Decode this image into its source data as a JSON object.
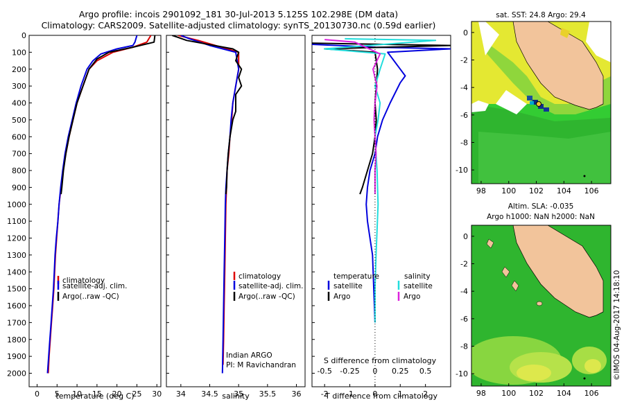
{
  "header": {
    "line1": "Argo profile: incois 2901092_181 30-Jul-2013 5.125S 102.298E (DM data)",
    "line2": "Climatology: CARS2009. Satellite-adjusted climatology: synTS_20130730.nc (0.59d earlier)"
  },
  "colors": {
    "climatology": "#dd0000",
    "satellite": "#0000dd",
    "argo": "#000000",
    "cyan": "#22dddd",
    "magenta": "#dd22dd",
    "land": "#f2c49b",
    "ocean": "#2fb52f"
  },
  "chart_data": [
    {
      "type": "line",
      "name": "temperature",
      "xlabel": "temperature (deg C)",
      "xlim": [
        -2,
        31
      ],
      "xticks": [
        "0",
        "5",
        "10",
        "15",
        "20",
        "25",
        "30"
      ],
      "ylim": [
        0,
        2080
      ],
      "yticks": [
        "0",
        "100",
        "200",
        "300",
        "400",
        "500",
        "600",
        "700",
        "800",
        "900",
        "1000",
        "1100",
        "1200",
        "1300",
        "1400",
        "1500",
        "1600",
        "1700",
        "1800",
        "1900",
        "2000"
      ],
      "legend": [
        "climatology",
        "satellite-adj. clim.",
        "Argo(..raw -QC)"
      ],
      "series": [
        {
          "name": "climatology",
          "color": "#dd0000",
          "points": [
            [
              28.5,
              0
            ],
            [
              27.5,
              40
            ],
            [
              24,
              70
            ],
            [
              19,
              100
            ],
            [
              15,
              150
            ],
            [
              13,
              200
            ],
            [
              11.5,
              300
            ],
            [
              10,
              400
            ],
            [
              9,
              500
            ],
            [
              8,
              600
            ],
            [
              7.2,
              700
            ],
            [
              6.5,
              800
            ],
            [
              6,
              900
            ],
            [
              5.5,
              1000
            ],
            [
              5.2,
              1100
            ],
            [
              4.9,
              1200
            ],
            [
              4.6,
              1300
            ],
            [
              4.4,
              1400
            ],
            [
              4.2,
              1500
            ],
            [
              3.9,
              1600
            ],
            [
              3.6,
              1700
            ],
            [
              3.3,
              1800
            ],
            [
              3,
              1900
            ],
            [
              2.8,
              2000
            ]
          ]
        },
        {
          "name": "satellite-adj. clim.",
          "color": "#0000dd",
          "points": [
            [
              25,
              0
            ],
            [
              24.5,
              40
            ],
            [
              24,
              60
            ],
            [
              20,
              80
            ],
            [
              16,
              110
            ],
            [
              14,
              150
            ],
            [
              12.5,
              200
            ],
            [
              11,
              300
            ],
            [
              9.8,
              400
            ],
            [
              8.8,
              500
            ],
            [
              7.8,
              600
            ],
            [
              7,
              700
            ],
            [
              6.4,
              800
            ],
            [
              5.9,
              900
            ],
            [
              5.5,
              1000
            ],
            [
              5.2,
              1100
            ],
            [
              4.8,
              1200
            ],
            [
              4.5,
              1300
            ],
            [
              4.3,
              1400
            ],
            [
              4.1,
              1500
            ],
            [
              3.8,
              1600
            ],
            [
              3.5,
              1700
            ],
            [
              3.2,
              1800
            ],
            [
              2.9,
              1900
            ],
            [
              2.6,
              2000
            ]
          ]
        },
        {
          "name": "Argo(..raw -QC)",
          "color": "#000000",
          "points": [
            [
              29.5,
              0
            ],
            [
              29.3,
              40
            ],
            [
              24,
              70
            ],
            [
              18,
              100
            ],
            [
              15,
              140
            ],
            [
              13,
              200
            ],
            [
              11.5,
              300
            ],
            [
              10,
              400
            ],
            [
              9,
              500
            ],
            [
              8,
              600
            ],
            [
              7.2,
              700
            ],
            [
              6.6,
              800
            ],
            [
              6.2,
              900
            ],
            [
              6,
              940
            ]
          ]
        }
      ]
    },
    {
      "type": "line",
      "name": "salinity",
      "xlabel": "salinity",
      "xlim": [
        33.75,
        36.15
      ],
      "xticks": [
        "34",
        "34.5",
        "35",
        "35.5",
        "36"
      ],
      "ylim": [
        0,
        2080
      ],
      "legend": [
        "climatology",
        "satellite-adj. clim.",
        "Argo(..raw -QC)"
      ],
      "annotation": [
        "Indian ARGO",
        "PI: M Ravichandran"
      ],
      "series": [
        {
          "name": "climatology",
          "color": "#dd0000",
          "points": [
            [
              33.95,
              0
            ],
            [
              34.3,
              30
            ],
            [
              34.7,
              70
            ],
            [
              35.0,
              100
            ],
            [
              35.0,
              200
            ],
            [
              34.95,
              300
            ],
            [
              34.9,
              400
            ],
            [
              34.88,
              500
            ],
            [
              34.85,
              600
            ],
            [
              34.83,
              700
            ],
            [
              34.8,
              800
            ],
            [
              34.79,
              900
            ],
            [
              34.78,
              1000
            ],
            [
              34.77,
              1200
            ],
            [
              34.76,
              1400
            ],
            [
              34.75,
              1600
            ],
            [
              34.74,
              1800
            ],
            [
              34.73,
              1950
            ]
          ]
        },
        {
          "name": "satellite-adj. clim.",
          "color": "#0000dd",
          "points": [
            [
              34.0,
              0
            ],
            [
              34.15,
              20
            ],
            [
              34.5,
              60
            ],
            [
              34.95,
              100
            ],
            [
              35.0,
              200
            ],
            [
              34.95,
              300
            ],
            [
              34.9,
              400
            ],
            [
              34.87,
              500
            ],
            [
              34.85,
              600
            ],
            [
              34.82,
              700
            ],
            [
              34.8,
              800
            ],
            [
              34.78,
              900
            ],
            [
              34.77,
              1000
            ],
            [
              34.76,
              1200
            ],
            [
              34.75,
              1400
            ],
            [
              34.74,
              1600
            ],
            [
              34.73,
              1800
            ],
            [
              34.72,
              2000
            ]
          ]
        },
        {
          "name": "Argo(..raw -QC)",
          "color": "#000000",
          "points": [
            [
              33.85,
              0
            ],
            [
              34.1,
              30
            ],
            [
              34.9,
              80
            ],
            [
              35.0,
              100
            ],
            [
              34.95,
              150
            ],
            [
              35.05,
              200
            ],
            [
              35.0,
              250
            ],
            [
              35.05,
              300
            ],
            [
              34.95,
              350
            ],
            [
              34.95,
              450
            ],
            [
              34.9,
              500
            ],
            [
              34.85,
              600
            ],
            [
              34.82,
              700
            ],
            [
              34.8,
              800
            ],
            [
              34.79,
              900
            ],
            [
              34.78,
              940
            ]
          ]
        }
      ]
    },
    {
      "type": "line",
      "name": "differences",
      "xlabel": "T difference from climatology",
      "xlabel2": "S difference from climatology",
      "xlim": [
        -2.5,
        3.0
      ],
      "xticks": [
        "-2",
        "-1",
        "0",
        "1",
        "2"
      ],
      "xticks2": [
        "-0.5",
        "-0.25",
        "0",
        "0.25",
        "0.5"
      ],
      "ylim": [
        0,
        2080
      ],
      "legend_titles": [
        "temperature",
        "salinity"
      ],
      "legend": [
        "satellite",
        "Argo",
        "satellite",
        "Argo"
      ],
      "series": [
        {
          "name": "T satellite",
          "color": "#0000dd",
          "points": [
            [
              -3,
              50
            ],
            [
              0,
              70
            ],
            [
              3,
              80
            ],
            [
              0.5,
              100
            ],
            [
              1,
              200
            ],
            [
              1.2,
              240
            ],
            [
              1.0,
              280
            ],
            [
              0.6,
              400
            ],
            [
              0.3,
              500
            ],
            [
              0.1,
              600
            ],
            [
              0,
              700
            ],
            [
              -0.2,
              800
            ],
            [
              -0.3,
              900
            ],
            [
              -0.35,
              1000
            ],
            [
              -0.3,
              1100
            ],
            [
              -0.2,
              1200
            ],
            [
              -0.1,
              1300
            ],
            [
              -0.05,
              1500
            ],
            [
              0,
              1700
            ]
          ]
        },
        {
          "name": "T Argo",
          "color": "#000000",
          "points": [
            [
              -3,
              45
            ],
            [
              1,
              55
            ],
            [
              3,
              60
            ],
            [
              -2,
              80
            ],
            [
              0,
              100
            ],
            [
              0.1,
              200
            ],
            [
              0.05,
              300
            ],
            [
              0,
              400
            ],
            [
              0.05,
              500
            ],
            [
              0,
              600
            ],
            [
              -0.1,
              700
            ],
            [
              -0.3,
              800
            ],
            [
              -0.5,
              900
            ],
            [
              -0.6,
              940
            ]
          ]
        },
        {
          "name": "S satellite",
          "color": "#22dddd",
          "points": [
            [
              -0.3,
              20
            ],
            [
              0.6,
              30
            ],
            [
              -0.5,
              80
            ],
            [
              0.1,
              110
            ],
            [
              0.05,
              200
            ],
            [
              0,
              300
            ],
            [
              0.05,
              400
            ],
            [
              0.03,
              500
            ],
            [
              0,
              600
            ],
            [
              0.02,
              800
            ],
            [
              0.03,
              1000
            ],
            [
              0.01,
              1300
            ],
            [
              0,
              1500
            ],
            [
              0,
              1700
            ]
          ]
        },
        {
          "name": "S Argo",
          "color": "#dd22dd",
          "points": [
            [
              -0.5,
              25
            ],
            [
              -0.2,
              40
            ],
            [
              0.05,
              110
            ],
            [
              -0.02,
              200
            ],
            [
              0.02,
              300
            ],
            [
              0,
              400
            ],
            [
              -0.01,
              500
            ],
            [
              0,
              600
            ],
            [
              0.01,
              700
            ],
            [
              0,
              800
            ],
            [
              0,
              940
            ]
          ]
        }
      ]
    }
  ],
  "maps": {
    "top_title": "sat. SST: 24.8 Argo: 29.4",
    "bottom_title1": "Altim. SLA: -0.035",
    "bottom_title2": "Argo h1000: NaN h2000: NaN",
    "xticks": [
      "98",
      "100",
      "102",
      "104",
      "106"
    ],
    "yticks": [
      "0",
      "-2",
      "-4",
      "-6",
      "-8",
      "-10"
    ]
  },
  "side_credit": "©IMOS 04-Aug-2017 14:18:10"
}
